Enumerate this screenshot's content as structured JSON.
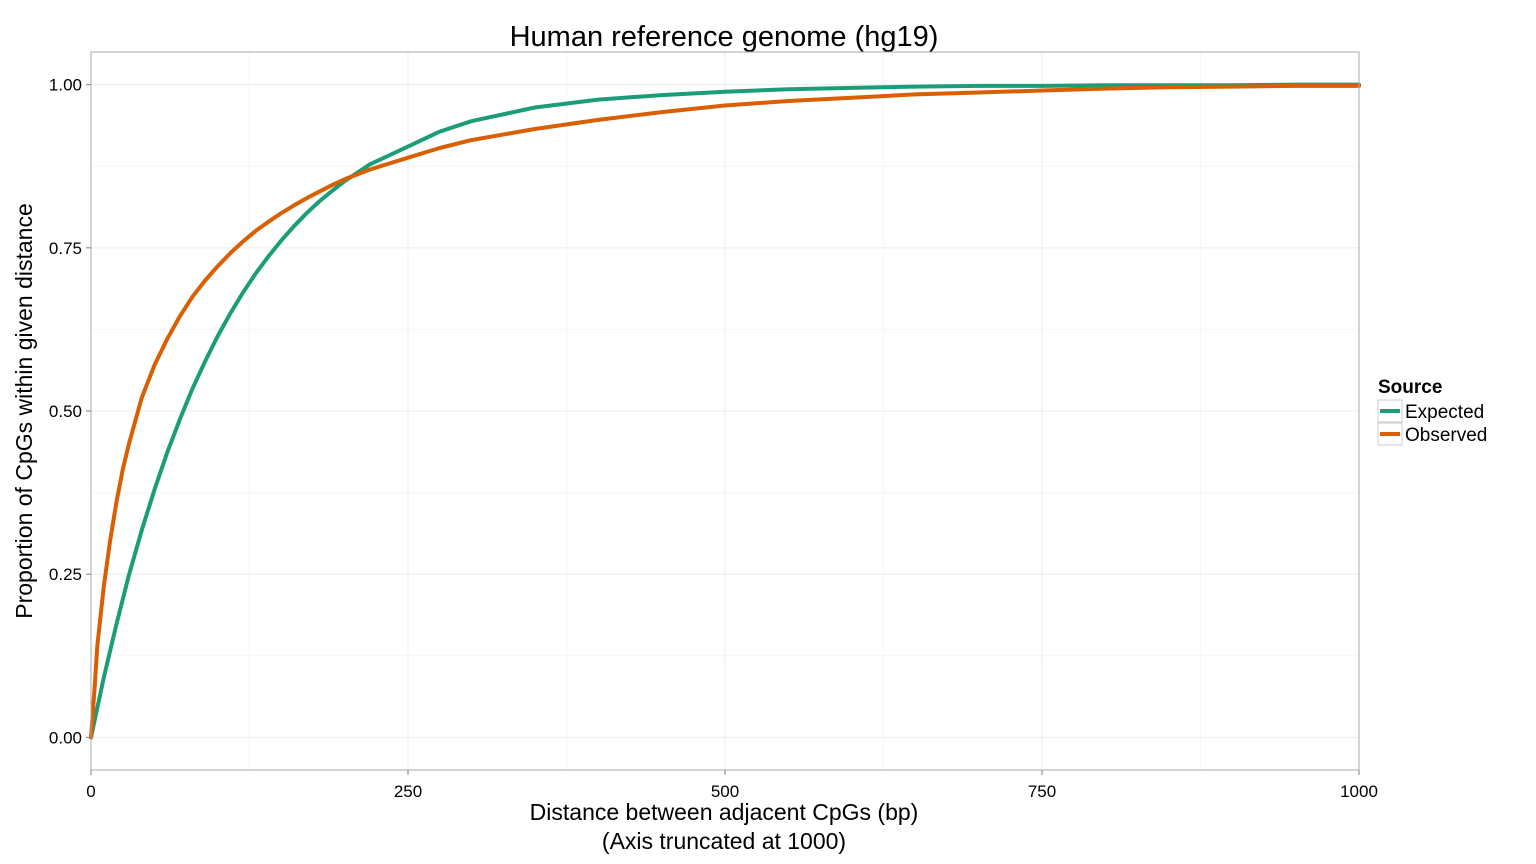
{
  "chart_data": {
    "type": "line",
    "title": "Human reference genome (hg19)",
    "xlabel": "Distance between adjacent CpGs (bp)",
    "xlabel_sub": "(Axis truncated at 1000)",
    "ylabel": "Proportion of CpGs within given distance",
    "xlim": [
      0,
      1000
    ],
    "ylim": [
      -0.05,
      1.05
    ],
    "x_ticks": [
      0,
      250,
      500,
      750,
      1000
    ],
    "x_tick_labels": [
      "0",
      "250",
      "500",
      "750",
      "1000"
    ],
    "y_ticks": [
      0,
      0.25,
      0.5,
      0.75,
      1.0
    ],
    "y_tick_labels": [
      "0.00",
      "0.25",
      "0.50",
      "0.75",
      "1.00"
    ],
    "grid": true,
    "legend": {
      "title": "Source",
      "position": "right"
    },
    "series": [
      {
        "name": "Expected",
        "color": "#1b9e77",
        "x": [
          0,
          10,
          20,
          30,
          40,
          50,
          60,
          70,
          80,
          90,
          100,
          110,
          120,
          130,
          140,
          150,
          160,
          170,
          180,
          190,
          200,
          220,
          250,
          275,
          300,
          350,
          400,
          450,
          500,
          550,
          600,
          650,
          700,
          750,
          800,
          850,
          900,
          950,
          1000
        ],
        "y": [
          0,
          0.091,
          0.173,
          0.249,
          0.317,
          0.379,
          0.436,
          0.487,
          0.534,
          0.576,
          0.615,
          0.65,
          0.682,
          0.711,
          0.737,
          0.761,
          0.783,
          0.803,
          0.821,
          0.837,
          0.852,
          0.878,
          0.905,
          0.928,
          0.944,
          0.965,
          0.977,
          0.984,
          0.989,
          0.993,
          0.995,
          0.997,
          0.998,
          0.998,
          0.999,
          0.999,
          0.999,
          1.0,
          1.0
        ]
      },
      {
        "name": "Observed",
        "color": "#d95f02",
        "x": [
          0,
          3,
          5,
          10,
          15,
          20,
          25,
          30,
          40,
          50,
          60,
          70,
          80,
          90,
          100,
          110,
          120,
          130,
          140,
          150,
          160,
          170,
          180,
          190,
          200,
          220,
          250,
          275,
          300,
          350,
          400,
          450,
          500,
          550,
          600,
          650,
          700,
          750,
          800,
          850,
          900,
          950,
          1000
        ],
        "y": [
          0,
          0.08,
          0.14,
          0.23,
          0.3,
          0.36,
          0.41,
          0.45,
          0.52,
          0.57,
          0.61,
          0.645,
          0.675,
          0.7,
          0.722,
          0.742,
          0.76,
          0.776,
          0.79,
          0.803,
          0.815,
          0.826,
          0.836,
          0.846,
          0.855,
          0.87,
          0.888,
          0.903,
          0.915,
          0.932,
          0.946,
          0.958,
          0.968,
          0.975,
          0.98,
          0.985,
          0.988,
          0.991,
          0.994,
          0.996,
          0.997,
          0.998,
          0.998
        ]
      }
    ]
  }
}
